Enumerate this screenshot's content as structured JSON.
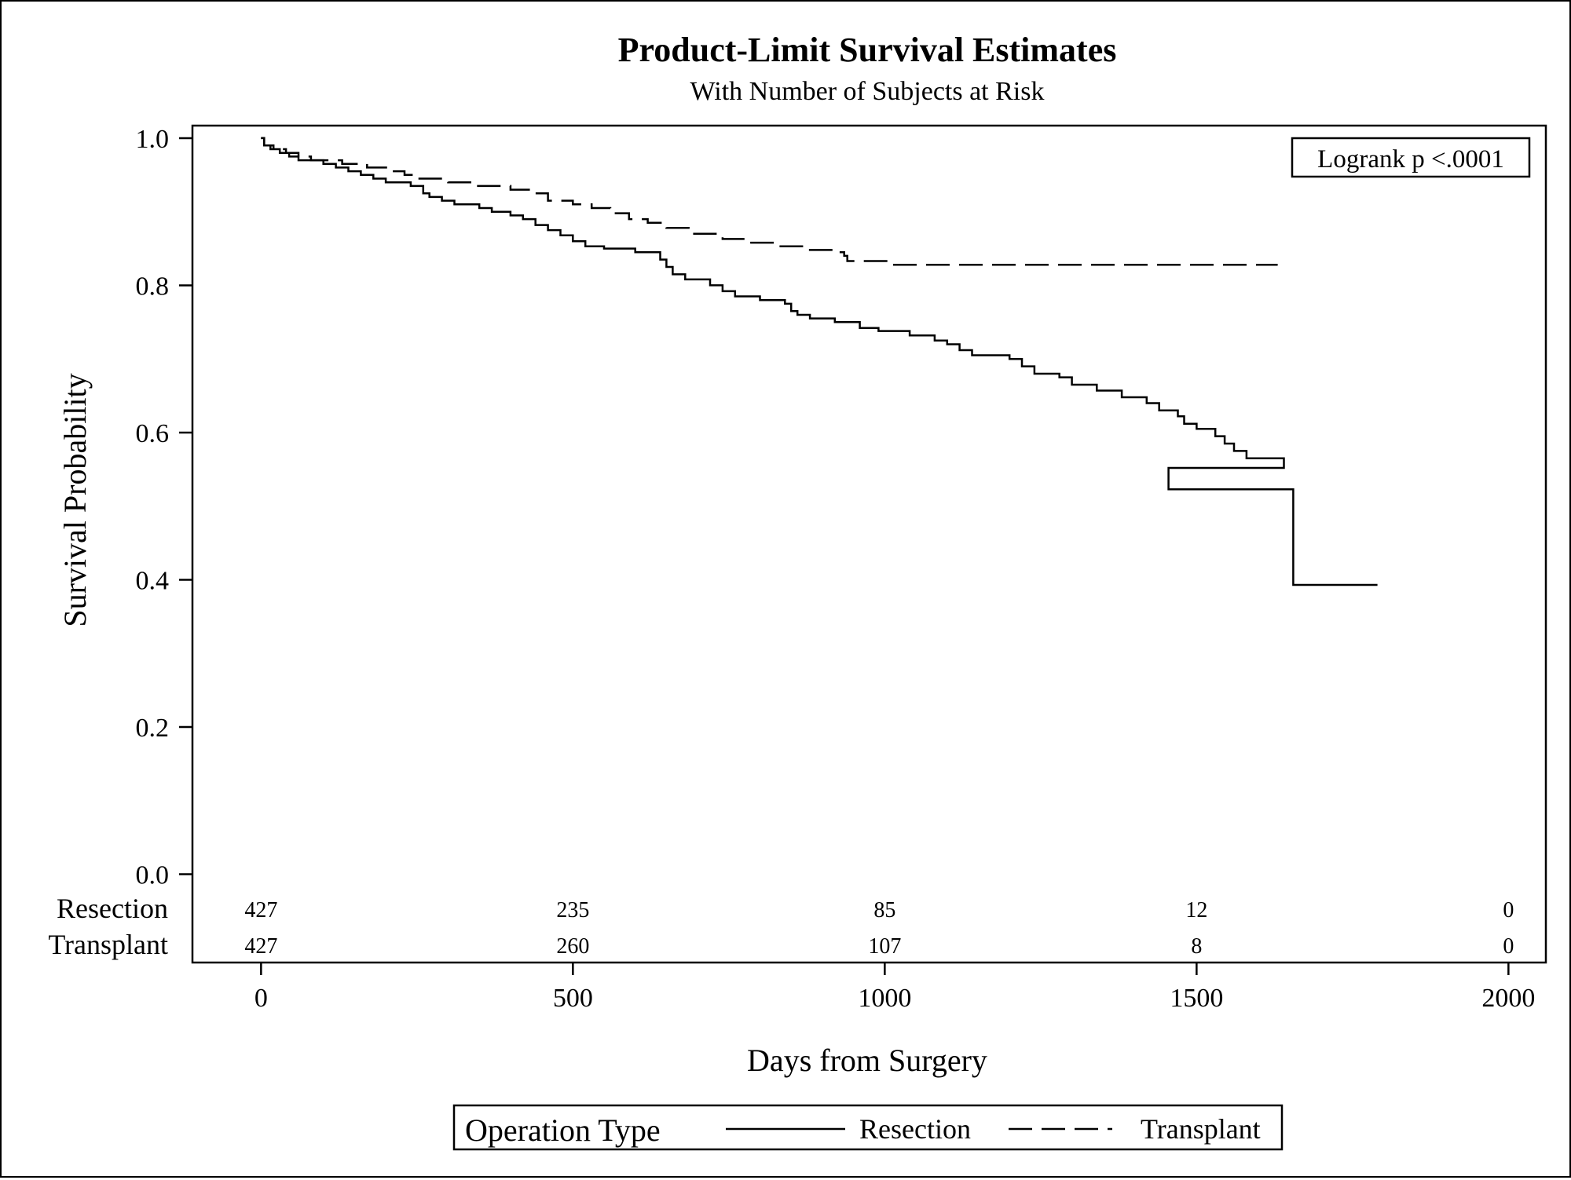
{
  "chart_data": {
    "type": "line",
    "title": "Product-Limit Survival Estimates",
    "subtitle": "With Number of Subjects at Risk",
    "xlabel": "Days from Surgery",
    "ylabel": "Survival Probability",
    "xlim": [
      -110,
      2060
    ],
    "ylim": [
      -0.12,
      1.017
    ],
    "x_ticks": [
      0,
      500,
      1000,
      1500,
      2000
    ],
    "x_tick_labels": [
      "0",
      "500",
      "1000",
      "1500",
      "2000"
    ],
    "y_ticks": [
      0.0,
      0.2,
      0.4,
      0.6,
      0.8,
      1.0
    ],
    "y_tick_labels": [
      "0.0",
      "0.2",
      "0.4",
      "0.6",
      "0.8",
      "1.0"
    ],
    "grid": false,
    "annotation": "Logrank p <.0001",
    "legend": {
      "title": "Operation Type",
      "placement": "bottom",
      "entries": [
        "Resection",
        "Transplant"
      ]
    },
    "series": [
      {
        "name": "Resection",
        "line_style": "solid",
        "points": [
          [
            0,
            1.0
          ],
          [
            5,
            0.99
          ],
          [
            15,
            0.985
          ],
          [
            30,
            0.98
          ],
          [
            45,
            0.975
          ],
          [
            60,
            0.97
          ],
          [
            100,
            0.965
          ],
          [
            120,
            0.96
          ],
          [
            140,
            0.955
          ],
          [
            160,
            0.95
          ],
          [
            180,
            0.945
          ],
          [
            200,
            0.94
          ],
          [
            240,
            0.935
          ],
          [
            260,
            0.925
          ],
          [
            270,
            0.92
          ],
          [
            290,
            0.915
          ],
          [
            310,
            0.91
          ],
          [
            350,
            0.905
          ],
          [
            370,
            0.9
          ],
          [
            400,
            0.895
          ],
          [
            420,
            0.89
          ],
          [
            440,
            0.882
          ],
          [
            460,
            0.875
          ],
          [
            480,
            0.868
          ],
          [
            500,
            0.86
          ],
          [
            520,
            0.853
          ],
          [
            550,
            0.85
          ],
          [
            600,
            0.845
          ],
          [
            640,
            0.835
          ],
          [
            650,
            0.825
          ],
          [
            660,
            0.815
          ],
          [
            680,
            0.808
          ],
          [
            720,
            0.8
          ],
          [
            740,
            0.792
          ],
          [
            760,
            0.785
          ],
          [
            800,
            0.78
          ],
          [
            840,
            0.775
          ],
          [
            850,
            0.765
          ],
          [
            860,
            0.76
          ],
          [
            880,
            0.755
          ],
          [
            920,
            0.75
          ],
          [
            960,
            0.742
          ],
          [
            990,
            0.738
          ],
          [
            1040,
            0.732
          ],
          [
            1080,
            0.725
          ],
          [
            1100,
            0.72
          ],
          [
            1120,
            0.712
          ],
          [
            1140,
            0.705
          ],
          [
            1200,
            0.7
          ],
          [
            1220,
            0.69
          ],
          [
            1240,
            0.68
          ],
          [
            1280,
            0.675
          ],
          [
            1300,
            0.665
          ],
          [
            1340,
            0.657
          ],
          [
            1380,
            0.648
          ],
          [
            1420,
            0.64
          ],
          [
            1440,
            0.63
          ],
          [
            1470,
            0.622
          ],
          [
            1480,
            0.612
          ],
          [
            1500,
            0.605
          ],
          [
            1530,
            0.595
          ],
          [
            1545,
            0.585
          ],
          [
            1560,
            0.575
          ],
          [
            1580,
            0.565
          ],
          [
            1640,
            0.552
          ],
          [
            1455,
            0.552
          ],
          [
            1455,
            0.523
          ],
          [
            1655,
            0.523
          ],
          [
            1655,
            0.393
          ],
          [
            1790,
            0.393
          ]
        ]
      },
      {
        "name": "Transplant",
        "line_style": "dashed",
        "points": [
          [
            0,
            1.0
          ],
          [
            5,
            0.99
          ],
          [
            20,
            0.985
          ],
          [
            40,
            0.98
          ],
          [
            60,
            0.975
          ],
          [
            80,
            0.97
          ],
          [
            130,
            0.965
          ],
          [
            170,
            0.96
          ],
          [
            210,
            0.955
          ],
          [
            230,
            0.95
          ],
          [
            250,
            0.945
          ],
          [
            300,
            0.94
          ],
          [
            340,
            0.935
          ],
          [
            400,
            0.93
          ],
          [
            440,
            0.925
          ],
          [
            460,
            0.915
          ],
          [
            500,
            0.91
          ],
          [
            530,
            0.905
          ],
          [
            560,
            0.898
          ],
          [
            590,
            0.89
          ],
          [
            620,
            0.885
          ],
          [
            650,
            0.878
          ],
          [
            690,
            0.87
          ],
          [
            740,
            0.863
          ],
          [
            780,
            0.858
          ],
          [
            830,
            0.853
          ],
          [
            880,
            0.848
          ],
          [
            920,
            0.845
          ],
          [
            935,
            0.84
          ],
          [
            940,
            0.833
          ],
          [
            1010,
            0.828
          ],
          [
            1630,
            0.828
          ]
        ]
      }
    ],
    "risk_table": {
      "times": [
        0,
        500,
        1000,
        1500,
        2000
      ],
      "rows": [
        {
          "group": "Resection",
          "counts": [
            "427",
            "235",
            "85",
            "12",
            "0"
          ]
        },
        {
          "group": "Transplant",
          "counts": [
            "427",
            "260",
            "107",
            "8",
            "0"
          ]
        }
      ]
    }
  }
}
